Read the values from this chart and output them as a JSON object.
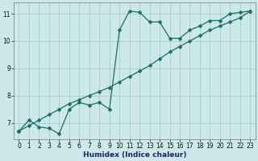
{
  "xlabel": "Humidex (Indice chaleur)",
  "background_color": "#cce8e8",
  "grid_color": "#aacccc",
  "line_color": "#1a6e6a",
  "xlim": [
    -0.5,
    23.5
  ],
  "ylim": [
    6.4,
    11.4
  ],
  "xticks": [
    0,
    1,
    2,
    3,
    4,
    5,
    6,
    7,
    8,
    9,
    10,
    11,
    12,
    13,
    14,
    15,
    16,
    17,
    18,
    19,
    20,
    21,
    22,
    23
  ],
  "yticks": [
    7,
    8,
    9,
    10,
    11
  ],
  "curve1_x": [
    0,
    1,
    2,
    3,
    4,
    5,
    6,
    7,
    8,
    9,
    10,
    11,
    12,
    13,
    14,
    15,
    16,
    17,
    18,
    19,
    20,
    21,
    22,
    23
  ],
  "curve1_y": [
    6.7,
    7.1,
    6.85,
    6.8,
    6.6,
    7.5,
    7.75,
    7.65,
    7.75,
    7.5,
    10.4,
    11.1,
    11.05,
    10.7,
    10.7,
    10.1,
    10.1,
    10.4,
    10.55,
    10.75,
    10.75,
    11.0,
    11.05,
    11.1
  ],
  "curve2_x": [
    0,
    1,
    2,
    3,
    4,
    5,
    6,
    7,
    8,
    9,
    10,
    11,
    12,
    13,
    14,
    15,
    16,
    17,
    18,
    19,
    20,
    21,
    22,
    23
  ],
  "curve2_y": [
    6.7,
    6.9,
    7.1,
    7.3,
    7.5,
    7.7,
    7.85,
    8.0,
    8.15,
    8.3,
    8.5,
    8.7,
    8.9,
    9.1,
    9.35,
    9.6,
    9.8,
    10.0,
    10.2,
    10.4,
    10.55,
    10.7,
    10.85,
    11.1
  ],
  "marker": "D",
  "marker_size": 2.5,
  "linewidth": 0.9
}
